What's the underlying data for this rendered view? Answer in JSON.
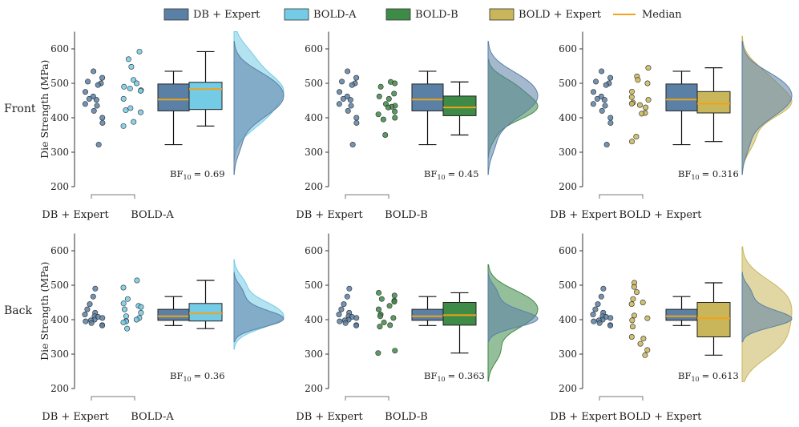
{
  "legend": [
    {
      "label": "DB + Expert",
      "color": "#5b80a6",
      "kind": "patch"
    },
    {
      "label": "BOLD-A",
      "color": "#74cbe6",
      "kind": "patch"
    },
    {
      "label": "BOLD-B",
      "color": "#3e8a47",
      "kind": "patch"
    },
    {
      "label": "BOLD + Expert",
      "color": "#c9b65b",
      "kind": "patch"
    },
    {
      "label": "Median",
      "color": "#f0a21a",
      "kind": "line"
    }
  ],
  "colors": {
    "DB + Expert": "#5b80a6",
    "BOLD-A": "#74cbe6",
    "BOLD-B": "#3e8a47",
    "BOLD + Expert": "#c9b65b",
    "median": "#f0a21a"
  },
  "ylabel": "Die Strength (MPa)",
  "yticks": [
    200,
    300,
    400,
    500,
    600
  ],
  "ylim": [
    200,
    650
  ],
  "rows": [
    "Front",
    "Back"
  ],
  "chart_data": [
    {
      "type": "box",
      "row": "Front",
      "reference": "DB + Expert",
      "comparison": "BOLD-A",
      "bf_label": "BF",
      "bf_sub": "10",
      "bf_value": "= 0.69",
      "ref_box": {
        "min": 322,
        "q1": 420,
        "median": 453,
        "q3": 498,
        "max": 535
      },
      "cmp_box": {
        "min": 376,
        "q1": 424,
        "median": 483,
        "q3": 503,
        "max": 592
      },
      "ref_points": [
        535,
        516,
        505,
        500,
        495,
        475,
        462,
        455,
        452,
        440,
        435,
        420,
        400,
        385,
        322
      ],
      "cmp_points": [
        592,
        570,
        548,
        510,
        500,
        490,
        485,
        480,
        478,
        455,
        428,
        422,
        416,
        388,
        376
      ]
    },
    {
      "type": "box",
      "row": "Front",
      "reference": "DB + Expert",
      "comparison": "BOLD-B",
      "bf_label": "BF",
      "bf_sub": "10",
      "bf_value": "= 0.45",
      "ref_box": {
        "min": 322,
        "q1": 420,
        "median": 453,
        "q3": 498,
        "max": 535
      },
      "cmp_box": {
        "min": 350,
        "q1": 406,
        "median": 430,
        "q3": 463,
        "max": 504
      },
      "ref_points": [
        535,
        516,
        505,
        500,
        495,
        475,
        462,
        455,
        452,
        440,
        435,
        420,
        400,
        385,
        322
      ],
      "cmp_points": [
        504,
        500,
        490,
        470,
        462,
        455,
        440,
        435,
        432,
        430,
        418,
        410,
        400,
        395,
        350
      ]
    },
    {
      "type": "box",
      "row": "Front",
      "reference": "DB + Expert",
      "comparison": "BOLD + Expert",
      "bf_label": "BF",
      "bf_sub": "10",
      "bf_value": "= 0.316",
      "ref_box": {
        "min": 322,
        "q1": 420,
        "median": 453,
        "q3": 498,
        "max": 535
      },
      "cmp_box": {
        "min": 331,
        "q1": 414,
        "median": 441,
        "q3": 476,
        "max": 545
      },
      "ref_points": [
        535,
        516,
        505,
        500,
        495,
        475,
        462,
        455,
        452,
        440,
        435,
        420,
        400,
        385,
        322
      ],
      "cmp_points": [
        545,
        520,
        510,
        500,
        476,
        460,
        452,
        444,
        441,
        437,
        430,
        414,
        412,
        345,
        331
      ]
    },
    {
      "type": "box",
      "row": "Back",
      "reference": "DB + Expert",
      "comparison": "BOLD-A",
      "bf_label": "BF",
      "bf_sub": "10",
      "bf_value": "= 0.36",
      "ref_box": {
        "min": 383,
        "q1": 398,
        "median": 410,
        "q3": 430,
        "max": 467
      },
      "cmp_box": {
        "min": 374,
        "q1": 396,
        "median": 418,
        "q3": 447,
        "max": 514
      },
      "ref_points": [
        490,
        467,
        445,
        430,
        420,
        415,
        410,
        408,
        405,
        400,
        398,
        395,
        390,
        384,
        383
      ],
      "cmp_points": [
        514,
        493,
        460,
        447,
        440,
        437,
        430,
        420,
        410,
        405,
        400,
        396,
        395,
        392,
        374
      ]
    },
    {
      "type": "box",
      "row": "Back",
      "reference": "DB + Expert",
      "comparison": "BOLD-B",
      "bf_label": "BF",
      "bf_sub": "10",
      "bf_value": "= 0.363",
      "ref_box": {
        "min": 383,
        "q1": 398,
        "median": 410,
        "q3": 430,
        "max": 467
      },
      "cmp_box": {
        "min": 303,
        "q1": 384,
        "median": 413,
        "q3": 450,
        "max": 478
      },
      "ref_points": [
        490,
        467,
        445,
        430,
        420,
        415,
        410,
        408,
        405,
        400,
        398,
        395,
        390,
        384,
        383
      ],
      "cmp_points": [
        478,
        470,
        460,
        455,
        452,
        440,
        430,
        415,
        410,
        405,
        392,
        384,
        380,
        310,
        303
      ]
    },
    {
      "type": "box",
      "row": "Back",
      "reference": "DB + Expert",
      "comparison": "BOLD + Expert",
      "bf_label": "BF",
      "bf_sub": "10",
      "bf_value": "= 0.613",
      "ref_box": {
        "min": 383,
        "q1": 398,
        "median": 410,
        "q3": 430,
        "max": 467
      },
      "cmp_box": {
        "min": 297,
        "q1": 350,
        "median": 404,
        "q3": 450,
        "max": 507
      },
      "ref_points": [
        490,
        467,
        445,
        430,
        420,
        415,
        410,
        408,
        405,
        400,
        398,
        395,
        390,
        384,
        383
      ],
      "cmp_points": [
        507,
        495,
        480,
        460,
        450,
        445,
        412,
        404,
        398,
        380,
        350,
        345,
        330,
        312,
        297
      ]
    }
  ]
}
